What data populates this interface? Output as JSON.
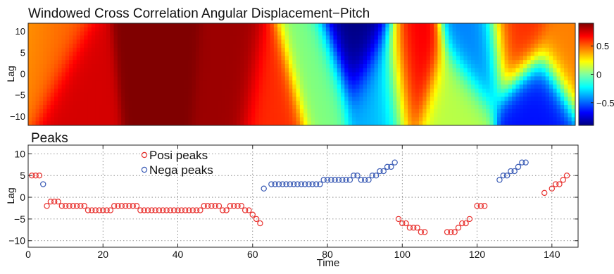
{
  "chart_data": [
    {
      "type": "heatmap",
      "title": "Windowed Cross Correlation Angular Displacement−Pitch",
      "ylabel": "Lag",
      "yticks": [
        "10",
        "5",
        "0",
        "−5",
        "−10"
      ],
      "ylim": [
        -12,
        12
      ],
      "xlim": [
        0,
        147
      ],
      "colorbar": {
        "ticks": [
          "0.5",
          "0",
          "−0.5"
        ],
        "range": [
          -0.9,
          0.9
        ],
        "colormap": "jet"
      },
      "blobs": [
        {
          "t": 1,
          "lag": 5,
          "value": 0.4
        },
        {
          "t": 5,
          "lag": 4,
          "value": 0.5
        },
        {
          "t": 13,
          "lag": -4,
          "value": 0.75
        },
        {
          "t": 35,
          "lag": 0,
          "value": 0.9
        },
        {
          "t": 55,
          "lag": -3,
          "value": 0.85
        },
        {
          "t": 65,
          "lag": -6,
          "value": 0.6
        },
        {
          "t": 78,
          "lag": 0,
          "value": 0.0
        },
        {
          "t": 88,
          "lag": 6,
          "value": -0.9
        },
        {
          "t": 95,
          "lag": -1,
          "value": -0.35
        },
        {
          "t": 103,
          "lag": 1,
          "value": 0.7
        },
        {
          "t": 114,
          "lag": -5,
          "value": 0.1
        },
        {
          "t": 121,
          "lag": 5,
          "value": -0.45
        },
        {
          "t": 131,
          "lag": 7,
          "value": 0.6
        },
        {
          "t": 137,
          "lag": -5,
          "value": -0.65
        },
        {
          "t": 145,
          "lag": 4,
          "value": 0.45
        }
      ]
    },
    {
      "type": "scatter",
      "title": "Peaks",
      "xlabel": "Time",
      "ylabel": "Lag",
      "xlim": [
        0,
        147
      ],
      "ylim": [
        -11.5,
        12
      ],
      "xticks": [
        0,
        20,
        40,
        60,
        80,
        100,
        120,
        140
      ],
      "yticks": [
        10,
        5,
        0,
        -5,
        -10
      ],
      "grid": true,
      "legend": "top-left",
      "series": [
        {
          "name": "Posi peaks",
          "color": "#e8322f",
          "points": [
            [
              1,
              5
            ],
            [
              2,
              5
            ],
            [
              3,
              5
            ],
            [
              5,
              -2
            ],
            [
              6,
              -1
            ],
            [
              7,
              -1
            ],
            [
              8,
              -1
            ],
            [
              9,
              -2
            ],
            [
              10,
              -2
            ],
            [
              11,
              -2
            ],
            [
              12,
              -2
            ],
            [
              13,
              -2
            ],
            [
              14,
              -2
            ],
            [
              15,
              -2
            ],
            [
              16,
              -3
            ],
            [
              17,
              -3
            ],
            [
              18,
              -3
            ],
            [
              19,
              -3
            ],
            [
              20,
              -3
            ],
            [
              21,
              -3
            ],
            [
              22,
              -3
            ],
            [
              23,
              -2
            ],
            [
              24,
              -2
            ],
            [
              25,
              -2
            ],
            [
              26,
              -2
            ],
            [
              27,
              -2
            ],
            [
              28,
              -2
            ],
            [
              29,
              -2
            ],
            [
              30,
              -3
            ],
            [
              31,
              -3
            ],
            [
              32,
              -3
            ],
            [
              33,
              -3
            ],
            [
              34,
              -3
            ],
            [
              35,
              -3
            ],
            [
              36,
              -3
            ],
            [
              37,
              -3
            ],
            [
              38,
              -3
            ],
            [
              39,
              -3
            ],
            [
              40,
              -3
            ],
            [
              41,
              -3
            ],
            [
              42,
              -3
            ],
            [
              43,
              -3
            ],
            [
              44,
              -3
            ],
            [
              45,
              -3
            ],
            [
              46,
              -3
            ],
            [
              47,
              -2
            ],
            [
              48,
              -2
            ],
            [
              49,
              -2
            ],
            [
              50,
              -2
            ],
            [
              51,
              -2
            ],
            [
              52,
              -3
            ],
            [
              53,
              -3
            ],
            [
              54,
              -2
            ],
            [
              55,
              -2
            ],
            [
              56,
              -2
            ],
            [
              57,
              -2
            ],
            [
              58,
              -3
            ],
            [
              59,
              -3
            ],
            [
              60,
              -4
            ],
            [
              61,
              -5
            ],
            [
              62,
              -6
            ],
            [
              99,
              -5
            ],
            [
              100,
              -6
            ],
            [
              101,
              -6
            ],
            [
              102,
              -7
            ],
            [
              103,
              -7
            ],
            [
              104,
              -7
            ],
            [
              105,
              -8
            ],
            [
              106,
              -8
            ],
            [
              112,
              -8
            ],
            [
              113,
              -8
            ],
            [
              114,
              -8
            ],
            [
              115,
              -7
            ],
            [
              116,
              -6
            ],
            [
              117,
              -6
            ],
            [
              118,
              -5
            ],
            [
              120,
              -2
            ],
            [
              121,
              -2
            ],
            [
              122,
              -2
            ],
            [
              138,
              1
            ],
            [
              140,
              2
            ],
            [
              141,
              3
            ],
            [
              142,
              3
            ],
            [
              143,
              4
            ],
            [
              144,
              5
            ]
          ]
        },
        {
          "name": "Nega peaks",
          "color": "#3a5bb5",
          "points": [
            [
              4,
              3
            ],
            [
              63,
              2
            ],
            [
              65,
              3
            ],
            [
              66,
              3
            ],
            [
              67,
              3
            ],
            [
              68,
              3
            ],
            [
              69,
              3
            ],
            [
              70,
              3
            ],
            [
              71,
              3
            ],
            [
              72,
              3
            ],
            [
              73,
              3
            ],
            [
              74,
              3
            ],
            [
              75,
              3
            ],
            [
              76,
              3
            ],
            [
              77,
              3
            ],
            [
              78,
              3
            ],
            [
              79,
              4
            ],
            [
              80,
              4
            ],
            [
              81,
              4
            ],
            [
              82,
              4
            ],
            [
              83,
              4
            ],
            [
              84,
              4
            ],
            [
              85,
              4
            ],
            [
              86,
              4
            ],
            [
              87,
              5
            ],
            [
              88,
              5
            ],
            [
              89,
              4
            ],
            [
              90,
              4
            ],
            [
              91,
              4
            ],
            [
              92,
              5
            ],
            [
              93,
              5
            ],
            [
              94,
              6
            ],
            [
              95,
              6
            ],
            [
              96,
              7
            ],
            [
              97,
              7
            ],
            [
              98,
              8
            ],
            [
              126,
              4
            ],
            [
              127,
              5
            ],
            [
              128,
              5
            ],
            [
              129,
              6
            ],
            [
              130,
              6
            ],
            [
              131,
              7
            ],
            [
              132,
              8
            ],
            [
              133,
              8
            ]
          ]
        }
      ]
    }
  ]
}
